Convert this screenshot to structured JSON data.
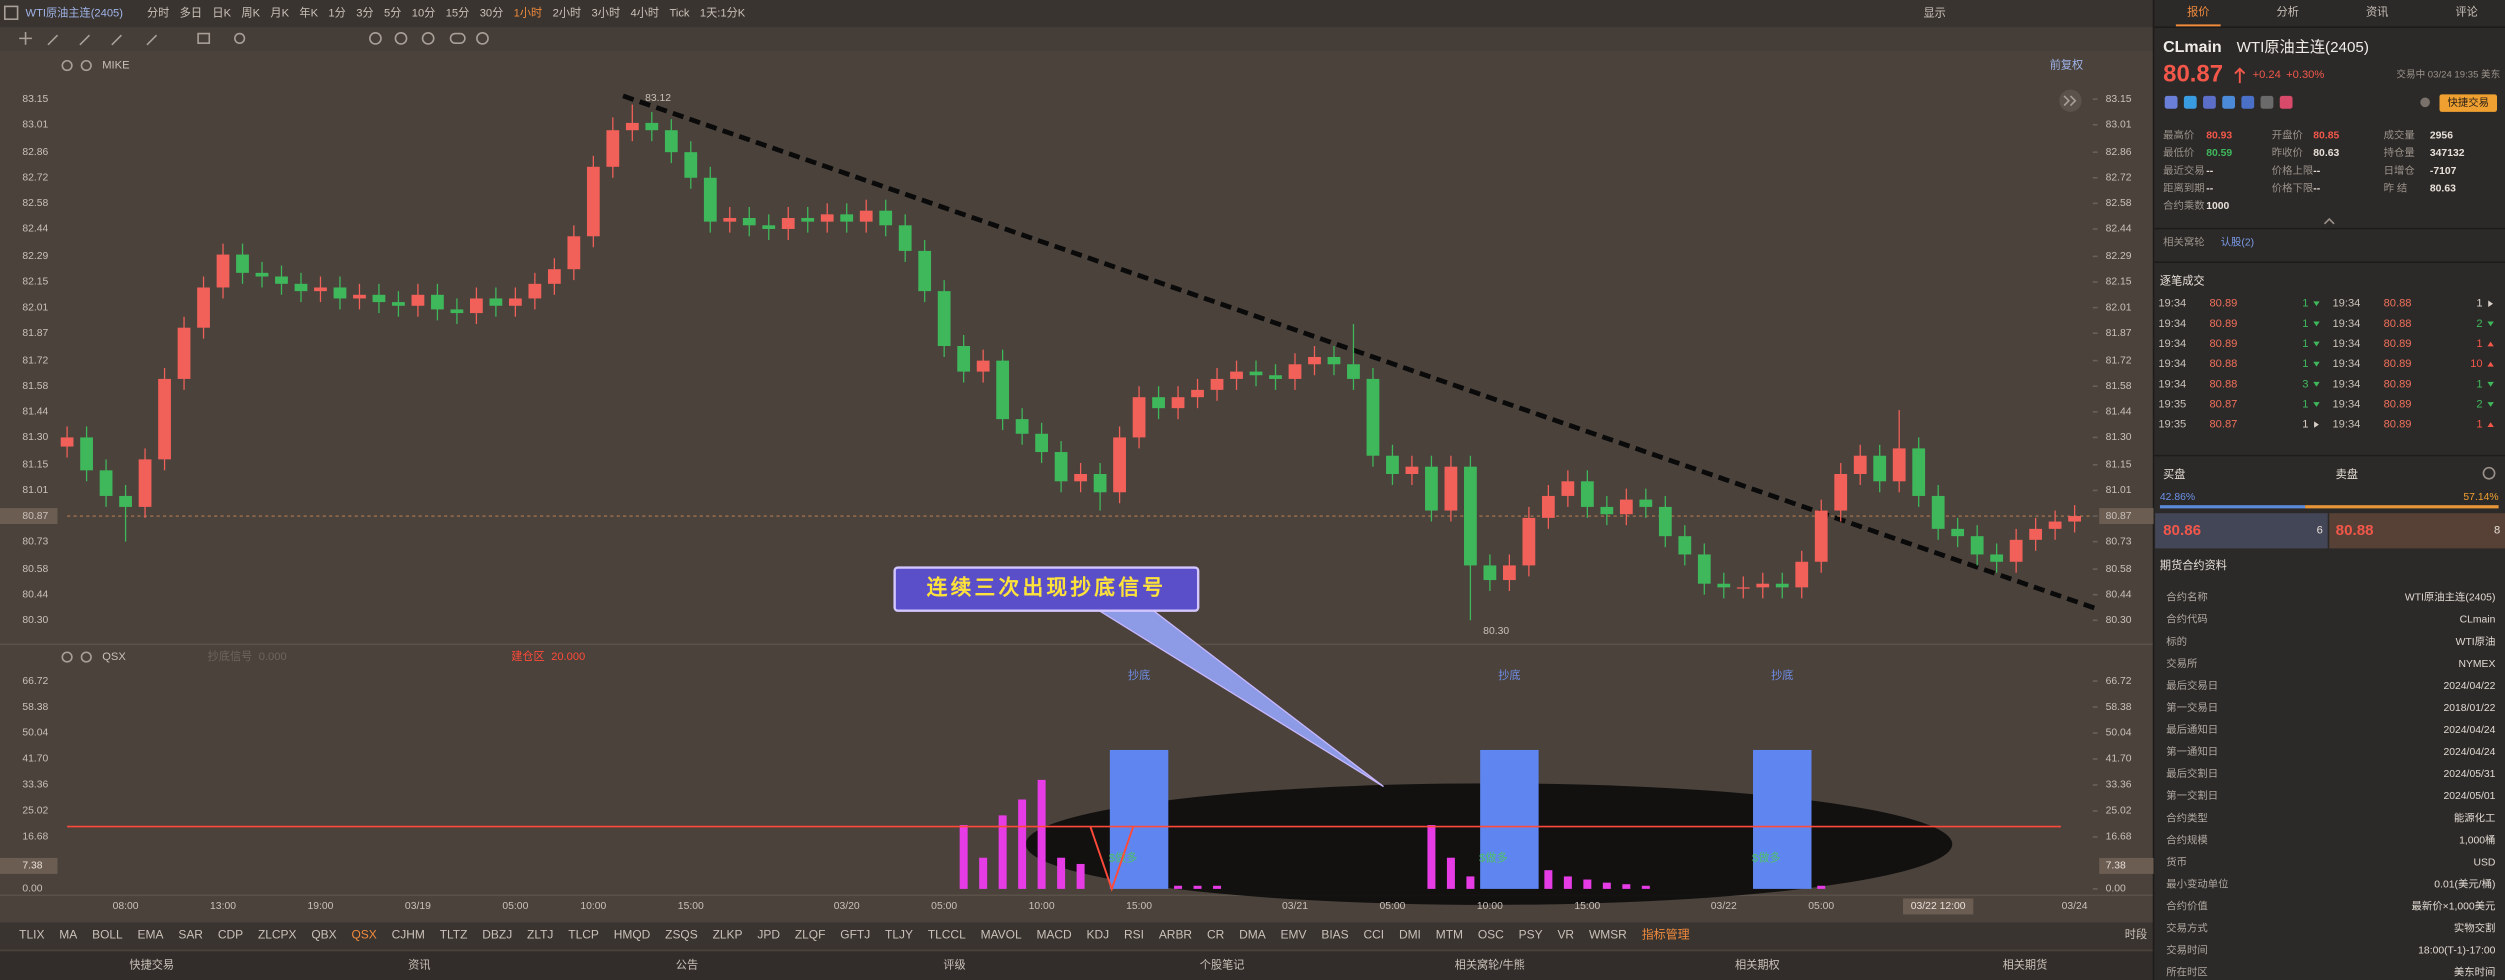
{
  "toolbar": {
    "symbol": "WTI原油主连(2405)",
    "periods": [
      "分时",
      "多日",
      "日K",
      "周K",
      "月K",
      "年K",
      "1分",
      "3分",
      "5分",
      "10分",
      "15分",
      "30分",
      "1小时",
      "2小时",
      "3小时",
      "4小时",
      "Tick",
      "1天:1分K"
    ],
    "active_period": 12,
    "display": "显示"
  },
  "chart_header": {
    "indicator": "MIKE",
    "adjust": "前复权"
  },
  "callout": "连续三次出现抄底信号",
  "chart_data": [
    {
      "type": "candlestick",
      "up_color": "#f2605a",
      "down_color": "#3fb85c",
      "ylim": [
        80.195,
        83.255
      ],
      "yticks": [
        83.15,
        83.01,
        82.86,
        82.72,
        82.58,
        82.44,
        82.29,
        82.15,
        82.01,
        81.87,
        81.72,
        81.58,
        81.44,
        {
          "value": 81.3,
          "label": "81.30"
        },
        81.15,
        81.01,
        80.87,
        80.73,
        80.58,
        80.44,
        {
          "value": 80.3,
          "label": "80.30"
        }
      ],
      "last_price_tick": 16,
      "crosshair_index": 96,
      "annotations": [
        {
          "index": 29,
          "value": 83.12,
          "label": "83.12"
        },
        {
          "index": 72,
          "value": 80.3,
          "label": "80.30"
        }
      ],
      "categories": [
        null,
        null,
        null,
        "08:00",
        null,
        null,
        null,
        null,
        "13:00",
        null,
        null,
        null,
        null,
        "19:00",
        null,
        null,
        null,
        null,
        "03/19",
        null,
        null,
        null,
        null,
        "05:00",
        null,
        null,
        null,
        "10:00",
        null,
        null,
        null,
        null,
        "15:00",
        null,
        null,
        null,
        null,
        null,
        null,
        null,
        "03/20",
        null,
        null,
        null,
        null,
        "05:00",
        null,
        null,
        null,
        null,
        "10:00",
        null,
        null,
        null,
        null,
        "15:00",
        null,
        null,
        null,
        null,
        null,
        null,
        null,
        "03/21",
        null,
        null,
        null,
        null,
        "05:00",
        null,
        null,
        null,
        null,
        "10:00",
        null,
        null,
        null,
        null,
        "15:00",
        null,
        null,
        null,
        null,
        null,
        null,
        "03/22",
        null,
        null,
        null,
        null,
        "05:00",
        null,
        null,
        null,
        null,
        null,
        "03/22 12:00",
        null,
        null,
        null,
        null,
        null,
        null,
        "03/24"
      ],
      "open": [
        81.25,
        81.3,
        81.12,
        80.98,
        80.92,
        81.18,
        81.62,
        81.9,
        82.12,
        82.3,
        82.2,
        82.18,
        82.14,
        82.1,
        82.12,
        82.06,
        82.08,
        82.04,
        82.02,
        82.08,
        82.0,
        81.98,
        82.06,
        82.02,
        82.06,
        82.14,
        82.22,
        82.4,
        82.78,
        82.98,
        83.02,
        82.98,
        82.86,
        82.72,
        82.48,
        82.5,
        82.46,
        82.44,
        82.5,
        82.48,
        82.52,
        82.48,
        82.54,
        82.46,
        82.32,
        82.1,
        81.8,
        81.66,
        81.72,
        81.4,
        81.32,
        81.22,
        81.06,
        81.1,
        81.0,
        81.3,
        81.52,
        81.46,
        81.52,
        81.56,
        81.62,
        81.66,
        81.64,
        81.62,
        81.7,
        81.74,
        81.7,
        81.62,
        81.2,
        81.1,
        81.14,
        80.9,
        81.14,
        80.6,
        80.52,
        80.6,
        80.86,
        80.98,
        81.06,
        80.92,
        80.88,
        80.96,
        80.92,
        80.76,
        80.66,
        80.5,
        80.48,
        80.48,
        80.5,
        80.48,
        80.62,
        80.9,
        81.1,
        81.2,
        81.06,
        81.24,
        80.98,
        80.8,
        80.76,
        80.66,
        80.62,
        80.74,
        80.8,
        80.84
      ],
      "high": [
        81.36,
        81.36,
        81.18,
        81.04,
        81.24,
        81.68,
        81.96,
        82.18,
        82.36,
        82.36,
        82.26,
        82.24,
        82.2,
        82.18,
        82.18,
        82.14,
        82.14,
        82.1,
        82.14,
        82.14,
        82.06,
        82.12,
        82.12,
        82.12,
        82.2,
        82.28,
        82.46,
        82.84,
        83.05,
        83.12,
        83.08,
        83.04,
        82.92,
        82.78,
        82.56,
        82.56,
        82.52,
        82.56,
        82.56,
        82.58,
        82.58,
        82.6,
        82.6,
        82.52,
        82.38,
        82.16,
        81.86,
        81.78,
        81.78,
        81.46,
        81.38,
        81.28,
        81.16,
        81.16,
        81.36,
        81.58,
        81.58,
        81.58,
        81.62,
        81.68,
        81.72,
        81.72,
        81.7,
        81.76,
        81.8,
        81.8,
        81.92,
        81.68,
        81.26,
        81.2,
        81.2,
        81.2,
        81.2,
        80.66,
        80.66,
        80.92,
        81.04,
        81.12,
        81.12,
        80.98,
        81.02,
        81.02,
        80.98,
        80.82,
        80.72,
        80.56,
        80.54,
        80.56,
        80.56,
        80.68,
        80.96,
        81.16,
        81.26,
        81.26,
        81.45,
        81.3,
        81.04,
        80.86,
        80.82,
        80.72,
        80.8,
        80.86,
        80.9,
        80.93
      ],
      "low": [
        81.19,
        81.06,
        80.92,
        80.73,
        80.86,
        81.12,
        81.56,
        81.84,
        82.06,
        82.14,
        82.12,
        82.08,
        82.04,
        82.04,
        82.0,
        82.0,
        81.98,
        81.96,
        81.96,
        81.94,
        81.92,
        81.92,
        81.96,
        81.96,
        82.0,
        82.08,
        82.16,
        82.34,
        82.72,
        82.92,
        82.92,
        82.8,
        82.66,
        82.42,
        82.42,
        82.4,
        82.38,
        82.38,
        82.42,
        82.42,
        82.42,
        82.42,
        82.4,
        82.26,
        82.04,
        81.74,
        81.6,
        81.6,
        81.34,
        81.26,
        81.16,
        81.0,
        81.0,
        80.9,
        80.94,
        81.24,
        81.4,
        81.4,
        81.46,
        81.5,
        81.56,
        81.58,
        81.56,
        81.56,
        81.64,
        81.64,
        81.56,
        81.14,
        81.04,
        81.04,
        80.84,
        80.84,
        80.3,
        80.46,
        80.46,
        80.54,
        80.8,
        80.92,
        80.86,
        80.82,
        80.82,
        80.86,
        80.7,
        80.6,
        80.44,
        80.42,
        80.42,
        80.42,
        80.42,
        80.42,
        80.56,
        80.84,
        81.04,
        81.0,
        81.0,
        80.92,
        80.74,
        80.7,
        80.6,
        80.56,
        80.56,
        80.68,
        80.74,
        80.78
      ],
      "close": [
        81.3,
        81.12,
        80.98,
        80.92,
        81.18,
        81.62,
        81.9,
        82.12,
        82.3,
        82.2,
        82.18,
        82.14,
        82.1,
        82.12,
        82.06,
        82.08,
        82.04,
        82.02,
        82.08,
        82.0,
        81.98,
        82.06,
        82.02,
        82.06,
        82.14,
        82.22,
        82.4,
        82.78,
        82.98,
        83.02,
        82.98,
        82.86,
        82.72,
        82.48,
        82.5,
        82.46,
        82.44,
        82.5,
        82.48,
        82.52,
        82.48,
        82.54,
        82.46,
        82.32,
        82.1,
        81.8,
        81.66,
        81.72,
        81.4,
        81.32,
        81.22,
        81.06,
        81.1,
        81.0,
        81.3,
        81.52,
        81.46,
        81.52,
        81.56,
        81.62,
        81.66,
        81.64,
        81.62,
        81.7,
        81.74,
        81.7,
        81.62,
        81.2,
        81.1,
        81.14,
        80.9,
        81.14,
        80.6,
        80.52,
        80.6,
        80.86,
        80.98,
        81.06,
        80.92,
        80.88,
        80.96,
        80.92,
        80.76,
        80.66,
        80.5,
        80.48,
        80.48,
        80.5,
        80.48,
        80.62,
        80.9,
        81.1,
        81.2,
        81.06,
        81.24,
        80.98,
        80.8,
        80.76,
        80.66,
        80.62,
        80.74,
        80.8,
        80.84,
        80.87
      ]
    },
    {
      "type": "bar",
      "title": "QSX",
      "ylim": [
        -2.05,
        70.83
      ],
      "yticks": [
        66.72,
        58.38,
        50.04,
        {
          "value": 41.7,
          "label": "41.70"
        },
        33.36,
        25.02,
        16.68,
        {
          "value": 0,
          "label": "0.00"
        }
      ],
      "crosshair": 7.38,
      "series": [
        {
          "name": "抄底信号",
          "current_label": "0.000",
          "color": "#e63ce6",
          "values": [
            null,
            null,
            null,
            null,
            null,
            null,
            null,
            null,
            null,
            null,
            null,
            null,
            null,
            null,
            null,
            null,
            null,
            null,
            null,
            null,
            null,
            null,
            null,
            null,
            null,
            null,
            null,
            null,
            null,
            null,
            null,
            null,
            null,
            null,
            null,
            null,
            null,
            null,
            null,
            null,
            null,
            null,
            null,
            null,
            null,
            null,
            20.5,
            10,
            23.6,
            28.7,
            35,
            10,
            8,
            null,
            null,
            null,
            null,
            1,
            1,
            1,
            null,
            null,
            null,
            null,
            null,
            null,
            null,
            null,
            null,
            null,
            20.5,
            10,
            4,
            null,
            null,
            null,
            6,
            4,
            3,
            2,
            1.5,
            1,
            null,
            null,
            null,
            null,
            null,
            null,
            null,
            null,
            1,
            null,
            null,
            null,
            null,
            null,
            null,
            null,
            null,
            null,
            null,
            null,
            null,
            null
          ]
        },
        {
          "name": "建仓区",
          "current_label": "20.000",
          "color": "#ff4a3a",
          "level": 20
        }
      ],
      "signals": {
        "color": "#5f86f0",
        "width_bands": 3,
        "label": "抄底",
        "trade_label": "$做多",
        "points": [
          {
            "index": 55,
            "value": 44.6
          },
          {
            "index": 74,
            "value": 44.6
          },
          {
            "index": 88,
            "value": 44.6
          }
        ]
      }
    }
  ],
  "indicator_tabs": {
    "items": [
      "TLIX",
      "MA",
      "BOLL",
      "EMA",
      "SAR",
      "CDP",
      "ZLCPX",
      "QBX",
      "QSX",
      "CJHM",
      "TLTZ",
      "DBZJ",
      "ZLTJ",
      "TLCP",
      "HMQD",
      "ZSQS",
      "ZLKP",
      "JPD",
      "ZLQF",
      "GFTJ",
      "TLJY",
      "TLCCL",
      "MAVOL",
      "MACD",
      "KDJ",
      "RSI",
      "ARBR",
      "CR",
      "DMA",
      "EMV",
      "BIAS",
      "CCI",
      "DMI",
      "MTM",
      "OSC",
      "PSY",
      "VR",
      "WMSR",
      "指标管理"
    ],
    "active": 8,
    "manage": 38,
    "session": "时段"
  },
  "footer": [
    "快捷交易",
    "资讯",
    "公告",
    "评级",
    "个股笔记",
    "相关窝轮/牛熊",
    "相关期权",
    "相关期货"
  ],
  "quote_panel": {
    "tabs": [
      "报价",
      "分析",
      "资讯",
      "评论"
    ],
    "active_tab": 0,
    "code": "CLmain",
    "name": "WTI原油主连(2405)",
    "price": 80.87,
    "change": "+0.24",
    "change_pct": "+0.30%",
    "status": "交易中 03/24 19:35 美东",
    "quick_trade": "快捷交易",
    "stats": [
      [
        {
          "label": "最高价",
          "value": 80.93,
          "color": "#f2574a"
        },
        {
          "label": "开盘价",
          "value": 80.85,
          "color": "#f2574a"
        },
        {
          "label": "成交量",
          "value": 2956
        }
      ],
      [
        {
          "label": "最低价",
          "value": 80.59,
          "color": "#3fb85c"
        },
        {
          "label": "昨收价",
          "value": 80.63
        },
        {
          "label": "持仓量",
          "value": 347132
        }
      ],
      [
        {
          "label": "最近交易",
          "value": "--"
        },
        {
          "label": "价格上限",
          "value": "--"
        },
        {
          "label": "日增仓",
          "value": -7107
        }
      ],
      [
        {
          "label": "距离到期",
          "value": "--"
        },
        {
          "label": "价格下限",
          "value": "--"
        },
        {
          "label": "昨 结",
          "value": 80.63
        }
      ],
      [
        {
          "label": "合约乘数",
          "value": 1000
        }
      ]
    ],
    "warrants_label": "相关窝轮",
    "warrants": "认股(2)",
    "trades_title": "逐笔成交",
    "trades": [
      [
        {
          "time": "19:34",
          "price": 80.89,
          "qty": 1,
          "side": "sell"
        },
        {
          "time": "19:34",
          "price": 80.88,
          "qty": 1,
          "side": "neutral"
        }
      ],
      [
        {
          "time": "19:34",
          "price": 80.89,
          "qty": 1,
          "side": "sell"
        },
        {
          "time": "19:34",
          "price": 80.88,
          "qty": 2,
          "side": "sell"
        }
      ],
      [
        {
          "time": "19:34",
          "price": 80.89,
          "qty": 1,
          "side": "sell"
        },
        {
          "time": "19:34",
          "price": 80.89,
          "qty": 1,
          "side": "buy"
        }
      ],
      [
        {
          "time": "19:34",
          "price": 80.88,
          "qty": 1,
          "side": "sell"
        },
        {
          "time": "19:34",
          "price": 80.89,
          "qty": 10,
          "side": "buy"
        }
      ],
      [
        {
          "time": "19:34",
          "price": 80.88,
          "qty": 3,
          "side": "sell"
        },
        {
          "time": "19:34",
          "price": 80.89,
          "qty": 1,
          "side": "sell"
        }
      ],
      [
        {
          "time": "19:35",
          "price": 80.87,
          "qty": 1,
          "side": "sell"
        },
        {
          "time": "19:34",
          "price": 80.89,
          "qty": 2,
          "side": "sell"
        }
      ],
      [
        {
          "time": "19:35",
          "price": 80.87,
          "qty": 1,
          "side": "neutral"
        },
        {
          "time": "19:34",
          "price": 80.89,
          "qty": 1,
          "side": "buy"
        }
      ]
    ],
    "bid_label": "买盘",
    "ask_label": "卖盘",
    "bid_ratio": {
      "value": 42.86,
      "label": "42.86%"
    },
    "ask_ratio": {
      "value": 57.14,
      "label": "57.14%"
    },
    "bid_price": 80.86,
    "bid_size": 6,
    "ask_price": 80.88,
    "ask_size": 8,
    "info_title": "期货合约资料",
    "info": [
      [
        "合约名称",
        "WTI原油主连(2405)"
      ],
      [
        "合约代码",
        "CLmain"
      ],
      [
        "标的",
        "WTI原油"
      ],
      [
        "交易所",
        "NYMEX"
      ],
      [
        "最后交易日",
        "2024/04/22"
      ],
      [
        "第一交易日",
        "2018/01/22"
      ],
      [
        "最后通知日",
        "2024/04/24"
      ],
      [
        "第一通知日",
        "2024/04/24"
      ],
      [
        "最后交割日",
        "2024/05/31"
      ],
      [
        "第一交割日",
        "2024/05/01"
      ],
      [
        "合约类型",
        "能源化工"
      ],
      [
        "合约规模",
        "1,000桶"
      ],
      [
        "货币",
        "USD"
      ],
      [
        "最小变动单位",
        "0.01(美元/桶)"
      ],
      [
        "合约价值",
        "最新价×1,000美元"
      ],
      [
        "交易方式",
        "实物交割"
      ],
      [
        "交易时间",
        "18:00(T-1)-17:00"
      ],
      [
        "所在时区",
        "美东时间"
      ]
    ]
  }
}
